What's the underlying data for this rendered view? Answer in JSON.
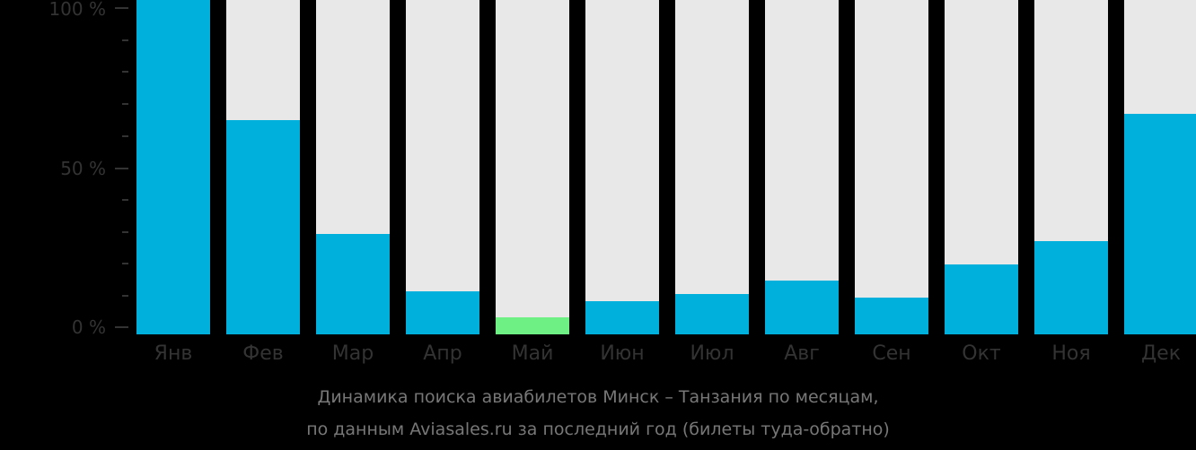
{
  "chart_data": {
    "type": "bar",
    "title": "Динамика поиска авиабилетов Минск – Танзания по месяцам, по данным Aviasales.ru за последний год (билеты туда-обратно)",
    "categories": [
      "Янв",
      "Фев",
      "Мар",
      "Апр",
      "Май",
      "Июн",
      "Июл",
      "Авг",
      "Сен",
      "Окт",
      "Ноя",
      "Дек"
    ],
    "values": [
      100,
      64,
      30,
      13,
      5,
      10,
      12,
      16,
      11,
      21,
      28,
      66
    ],
    "highlight_index": 4,
    "xlabel": "",
    "ylabel": "",
    "ylim": [
      0,
      100
    ],
    "yticks": [
      "0 %",
      "50 %",
      "100 %"
    ],
    "grid": false,
    "legend": null
  },
  "colors": {
    "bar": "#00b0dc",
    "highlight": "#6ef084",
    "track": "#e8e8e8",
    "background": "#000000"
  },
  "caption": {
    "line1": "Динамика поиска авиабилетов Минск – Танзания по месяцам,",
    "line2": "по данным Aviasales.ru за последний год (билеты туда-обратно)"
  }
}
